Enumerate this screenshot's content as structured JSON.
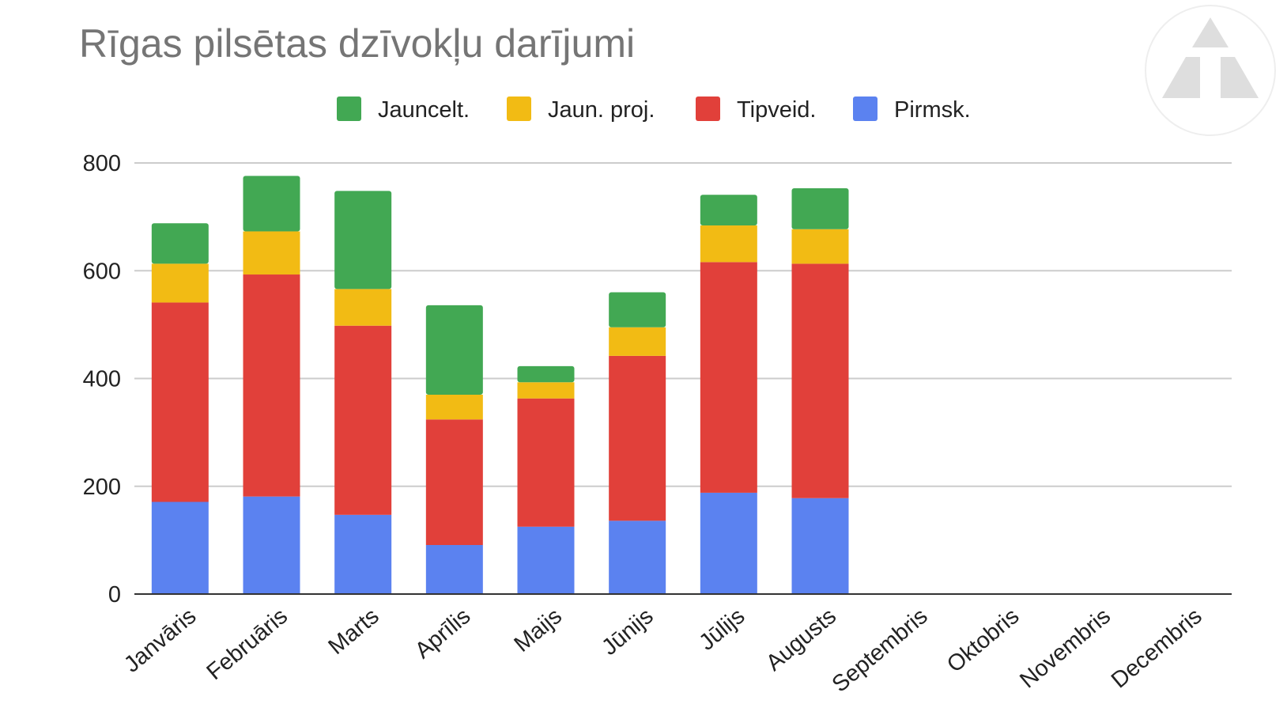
{
  "chart_data": {
    "type": "bar",
    "stacked": true,
    "title": "Rīgas pilsētas dzīvokļu darījumi",
    "categories": [
      "Janvāris",
      "Februāris",
      "Marts",
      "Aprīlis",
      "Maijs",
      "Jūnijs",
      "Jūlijs",
      "Augusts",
      "Septembris",
      "Oktobris",
      "Novembris",
      "Decembris"
    ],
    "series": [
      {
        "name": "Pirmsk.",
        "color": "#5b82f0",
        "values": [
          171,
          181,
          147,
          91,
          125,
          136,
          188,
          178,
          null,
          null,
          null,
          null
        ]
      },
      {
        "name": "Tipveid.",
        "color": "#e1403a",
        "values": [
          370,
          412,
          351,
          233,
          238,
          306,
          428,
          435,
          null,
          null,
          null,
          null
        ]
      },
      {
        "name": "Jaun. proj.",
        "color": "#f2bb14",
        "values": [
          72,
          80,
          68,
          46,
          30,
          53,
          68,
          64,
          null,
          null,
          null,
          null
        ]
      },
      {
        "name": "Jauncelt.",
        "color": "#42a853",
        "values": [
          75,
          103,
          182,
          166,
          30,
          65,
          57,
          76,
          null,
          null,
          null,
          null
        ]
      }
    ],
    "legend_order": [
      "Jauncelt.",
      "Jaun. proj.",
      "Tipveid.",
      "Pirmsk."
    ],
    "legend_position": "top",
    "ylim": [
      0,
      800
    ],
    "yticks": [
      0,
      200,
      400,
      600,
      800
    ],
    "grid": true,
    "xlabel": "",
    "ylabel": ""
  },
  "logo": {
    "icon": "triangle-logo-icon"
  }
}
